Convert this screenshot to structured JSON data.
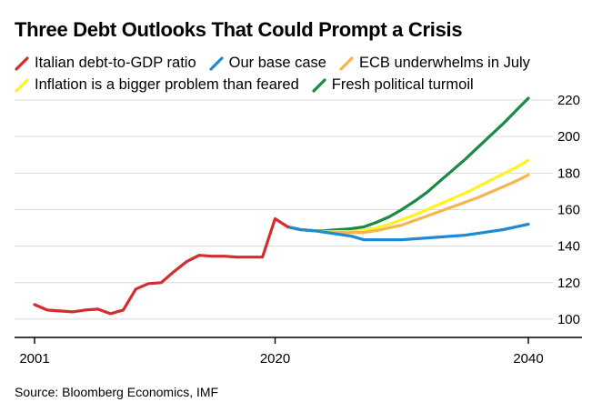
{
  "chart_data": {
    "type": "line",
    "title": "Three Debt Outlooks That Could Prompt a Crisis",
    "xlabel": "",
    "ylabel": "",
    "xlim": [
      2001,
      2040
    ],
    "ylim": [
      90,
      220
    ],
    "x_ticks": [
      2001,
      2020,
      2040
    ],
    "x_tick_labels": [
      "2001",
      "2020",
      "2040"
    ],
    "y_ticks": [
      100,
      120,
      140,
      160,
      180,
      200,
      220
    ],
    "y_tick_labels": [
      "100",
      "120",
      "140",
      "160",
      "180",
      "200",
      "220"
    ],
    "grid": true,
    "legend_position": "top-left",
    "source": "Source: Bloomberg Economics, IMF",
    "series": [
      {
        "name": "Fresh political turmoil",
        "color": "#1a8a46",
        "x": [
          2021,
          2022,
          2023,
          2024,
          2025,
          2026,
          2027,
          2028,
          2029,
          2030,
          2031,
          2032,
          2033,
          2034,
          2035,
          2036,
          2037,
          2038,
          2039,
          2040
        ],
        "values": [
          150.5,
          149,
          148.5,
          148.5,
          149,
          149.5,
          150.5,
          153,
          156,
          160,
          164.5,
          169.5,
          175.5,
          181.5,
          187.5,
          194,
          200.5,
          207,
          214,
          221
        ]
      },
      {
        "name": "Inflation is a bigger problem than feared",
        "color": "#fff41f",
        "x": [
          2021,
          2022,
          2023,
          2024,
          2025,
          2026,
          2027,
          2028,
          2029,
          2030,
          2031,
          2032,
          2033,
          2034,
          2035,
          2036,
          2037,
          2038,
          2039,
          2040
        ],
        "values": [
          150.5,
          149,
          148.5,
          148,
          148,
          148,
          148.5,
          150,
          152,
          154.5,
          157,
          160,
          163,
          166,
          169,
          172.5,
          176,
          179.5,
          183,
          187
        ]
      },
      {
        "name": "ECB underwhelms in July",
        "color": "#f4b552",
        "x": [
          2021,
          2022,
          2023,
          2024,
          2025,
          2026,
          2027,
          2028,
          2029,
          2030,
          2031,
          2032,
          2033,
          2034,
          2035,
          2036,
          2037,
          2038,
          2039,
          2040
        ],
        "values": [
          150.5,
          149,
          148.5,
          148,
          147.5,
          147.5,
          147.5,
          148.5,
          150,
          151.5,
          154,
          156.5,
          159,
          161.5,
          164,
          166.5,
          169.5,
          172.5,
          175.5,
          179
        ]
      },
      {
        "name": "Our base case",
        "color": "#1f8ad3",
        "x": [
          2021,
          2022,
          2023,
          2024,
          2025,
          2026,
          2027,
          2028,
          2029,
          2030,
          2031,
          2032,
          2033,
          2034,
          2035,
          2036,
          2037,
          2038,
          2039,
          2040
        ],
        "values": [
          150.5,
          149,
          148.5,
          147.5,
          146.5,
          145.5,
          143.5,
          143.5,
          143.5,
          143.5,
          144,
          144.5,
          145,
          145.5,
          146,
          147,
          148,
          149,
          150.5,
          152
        ]
      },
      {
        "name": "Italian debt-to-GDP ratio",
        "color": "#d52d2d",
        "x": [
          2001,
          2002,
          2003,
          2004,
          2005,
          2006,
          2007,
          2008,
          2009,
          2010,
          2011,
          2012,
          2013,
          2014,
          2015,
          2016,
          2017,
          2018,
          2019,
          2020,
          2021
        ],
        "values": [
          108,
          105,
          104.5,
          104,
          105,
          105.5,
          103,
          105,
          116.5,
          119.5,
          120,
          126,
          131.5,
          135,
          134.5,
          134.5,
          134,
          134,
          134,
          155,
          150.5
        ]
      }
    ]
  },
  "legend": {
    "row1": [
      {
        "label": "Italian debt-to-GDP ratio",
        "color": "#d52d2d"
      },
      {
        "label": "Our base case",
        "color": "#1f8ad3"
      },
      {
        "label": "ECB underwhelms in July",
        "color": "#f4b552"
      }
    ],
    "row2": [
      {
        "label": "Inflation is a bigger problem than feared",
        "color": "#fff41f"
      },
      {
        "label": "Fresh political turmoil",
        "color": "#1a8a46"
      }
    ]
  }
}
